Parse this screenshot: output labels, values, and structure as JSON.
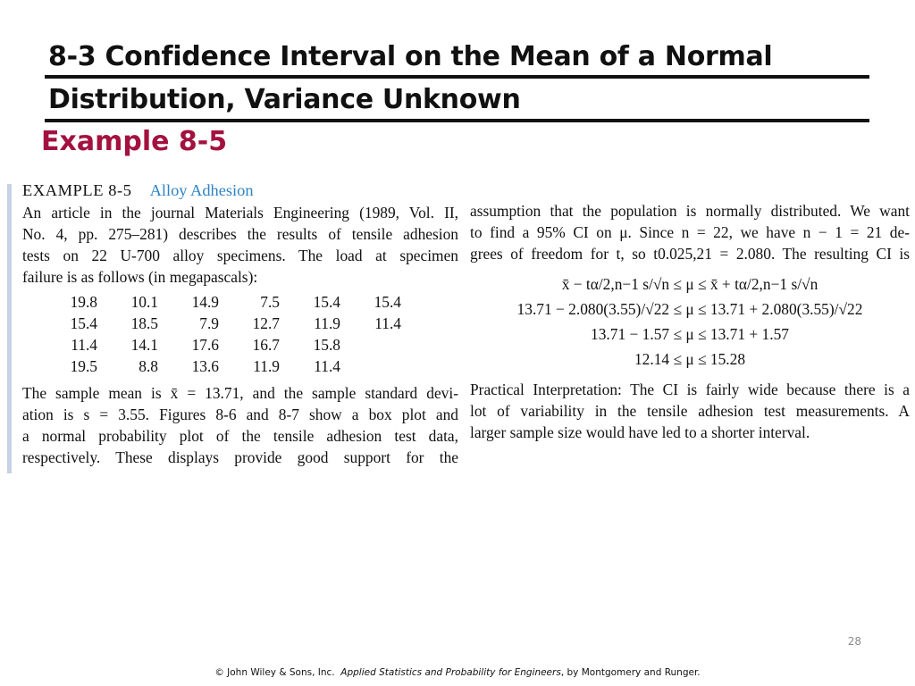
{
  "slide": {
    "title_line1": "8-3 Confidence Interval on the Mean of a Normal",
    "title_line2": "Distribution, Variance Unknown",
    "subtitle": "Example 8-5",
    "page_number": "28"
  },
  "example": {
    "label": "EXAMPLE 8-5",
    "name": "Alloy Adhesion",
    "intro_lines": [
      "An article in the journal Materials Engineering (1989, Vol. II,",
      "No. 4, pp. 275–281) describes the results of tensile adhesion",
      "tests on 22 U-700 alloy specimens. The load at specimen",
      "failure is as follows (in megapascals):"
    ],
    "data_rows": [
      [
        "19.8",
        "10.1",
        "14.9",
        "7.5",
        "15.4",
        "15.4"
      ],
      [
        "15.4",
        "18.5",
        "7.9",
        "12.7",
        "11.9",
        "11.4"
      ],
      [
        "11.4",
        "14.1",
        "17.6",
        "16.7",
        "15.8",
        ""
      ],
      [
        "19.5",
        "8.8",
        "13.6",
        "11.9",
        "11.4",
        ""
      ]
    ],
    "summary_lines": [
      "The sample mean is x̄ = 13.71, and the sample standard devi-",
      "ation is s = 3.55. Figures 8-6 and 8-7 show a box plot and",
      "a normal probability plot of the tensile adhesion test data,",
      "respectively. These displays provide good support for the"
    ],
    "right_lines": [
      "assumption that the population is normally distributed. We want",
      "to find a 95% CI on μ. Since n = 22, we have n − 1 = 21 de-",
      "grees of freedom for t, so t0.025,21 = 2.080. The resulting CI is"
    ],
    "equations": [
      "x̄ − tα/2,n−1 s/√n ≤ μ ≤ x̄ + tα/2,n−1 s/√n",
      "13.71 − 2.080(3.55)/√22 ≤ μ ≤ 13.71 + 2.080(3.55)/√22",
      "13.71 − 1.57 ≤ μ ≤ 13.71 + 1.57",
      "12.14 ≤ μ ≤ 15.28"
    ],
    "interpretation_lines": [
      "Practical Interpretation: The CI is fairly wide because there is a",
      "lot of variability in the tensile adhesion test measurements. A",
      "larger sample size would have led to a shorter interval."
    ]
  },
  "footer": {
    "copyright": "© John Wiley & Sons, Inc.",
    "book": "Applied Statistics and Probability for Engineers",
    "authors": ", by Montgomery and Runger."
  }
}
